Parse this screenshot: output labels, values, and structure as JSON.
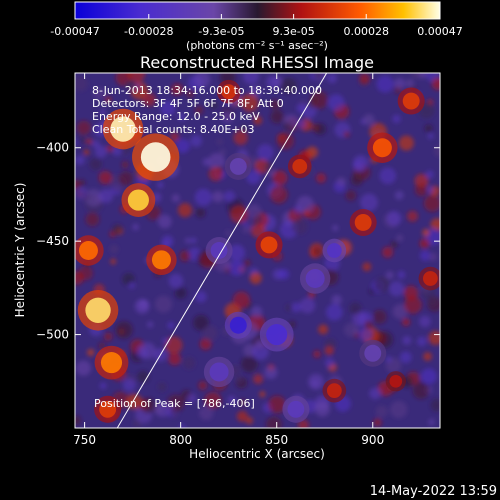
{
  "chart_data": {
    "type": "heatmap",
    "title": "Reconstructed RHESSI Image",
    "xlabel": "Heliocentric X (arcsec)",
    "ylabel": "Heliocentric Y (arcsec)",
    "xlim": [
      745,
      935
    ],
    "ylim": [
      -550,
      -360
    ],
    "x_ticks": [
      750,
      800,
      850,
      900
    ],
    "y_ticks": [
      -400,
      -450,
      -500
    ],
    "colorbar": {
      "min": -0.00047,
      "max": 0.00047,
      "tick_values": [
        -0.00047,
        -0.00028,
        -9.3e-05,
        9.3e-05,
        0.00028,
        0.00047
      ],
      "tick_labels": [
        "-0.00047",
        "-0.00028",
        "-9.3e-05",
        "9.3e-05",
        "0.00028",
        "0.00047"
      ],
      "units_label": "(photons cm⁻² s⁻¹ asec⁻²)"
    },
    "annotations": [
      "8-Jun-2013 18:34:16.000 to 18:39:40.000",
      "Detectors: 3F 4F 5F 6F 7F 8F, Att 0",
      "Energy Range: 12.0 - 25.0 keV",
      "Clean    Total counts: 8.40E+03"
    ],
    "peak_label": "Position of Peak = [786,-406]",
    "limb_line": [
      [
        767,
        -550
      ],
      [
        876,
        -360
      ]
    ],
    "sources": [
      {
        "x": 787,
        "y": -405,
        "value": 0.00047,
        "radius": 14
      },
      {
        "x": 770,
        "y": -390,
        "value": 0.00045,
        "radius": 12
      },
      {
        "x": 778,
        "y": -428,
        "value": 0.0004,
        "radius": 10
      },
      {
        "x": 757,
        "y": -487,
        "value": 0.00042,
        "radius": 12
      },
      {
        "x": 764,
        "y": -515,
        "value": 0.0003,
        "radius": 10
      },
      {
        "x": 790,
        "y": -460,
        "value": 0.0003,
        "radius": 9
      },
      {
        "x": 752,
        "y": -455,
        "value": 0.00028,
        "radius": 9
      },
      {
        "x": 762,
        "y": -540,
        "value": 0.0002,
        "radius": 8
      },
      {
        "x": 846,
        "y": -452,
        "value": 0.00022,
        "radius": 8
      },
      {
        "x": 862,
        "y": -410,
        "value": 0.00018,
        "radius": 7
      },
      {
        "x": 905,
        "y": -400,
        "value": 0.00025,
        "radius": 9
      },
      {
        "x": 920,
        "y": -375,
        "value": 0.0002,
        "radius": 8
      },
      {
        "x": 895,
        "y": -440,
        "value": 0.0002,
        "radius": 8
      },
      {
        "x": 930,
        "y": -470,
        "value": 0.00015,
        "radius": 7
      },
      {
        "x": 880,
        "y": -530,
        "value": 0.00015,
        "radius": 7
      },
      {
        "x": 912,
        "y": -525,
        "value": 0.00012,
        "radius": 6
      },
      {
        "x": 825,
        "y": -370,
        "value": 0.00018,
        "radius": 7
      },
      {
        "x": 850,
        "y": -500,
        "value": -0.0003,
        "radius": 10
      },
      {
        "x": 830,
        "y": -495,
        "value": -0.00035,
        "radius": 8
      },
      {
        "x": 870,
        "y": -470,
        "value": -0.0002,
        "radius": 9
      },
      {
        "x": 880,
        "y": -455,
        "value": -0.00025,
        "radius": 7
      },
      {
        "x": 820,
        "y": -455,
        "value": -0.0002,
        "radius": 8
      },
      {
        "x": 830,
        "y": -410,
        "value": -0.00015,
        "radius": 8
      },
      {
        "x": 900,
        "y": -510,
        "value": -0.00015,
        "radius": 8
      },
      {
        "x": 820,
        "y": -520,
        "value": -0.0002,
        "radius": 9
      },
      {
        "x": 860,
        "y": -540,
        "value": -0.0002,
        "radius": 8
      }
    ]
  },
  "footer": {
    "timestamp": "14-May-2022 13:59"
  }
}
